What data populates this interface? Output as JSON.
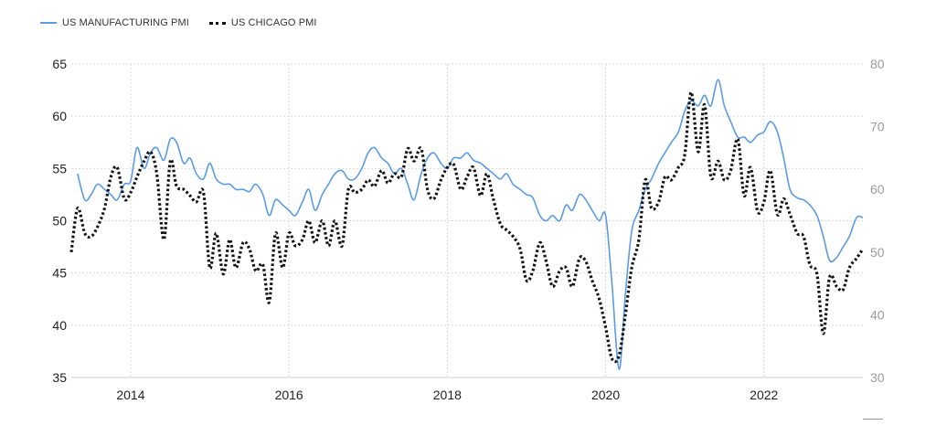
{
  "legend": [
    {
      "label": "US MANUFACTURING PMI",
      "style": "solid",
      "color": "#5b9be6"
    },
    {
      "label": "US CHICAGO PMI",
      "style": "dotted",
      "color": "#111111"
    }
  ],
  "chart_data": {
    "type": "line",
    "title": "",
    "xlabel": "",
    "ylabel": "",
    "grid": true,
    "legend_position": "top-left",
    "x_ticks": [
      "2014",
      "2016",
      "2018",
      "2020",
      "2022"
    ],
    "xlim": [
      2013.25,
      2023.25
    ],
    "y_left": {
      "lim": [
        35,
        65
      ],
      "ticks": [
        "35",
        "40",
        "45",
        "50",
        "55",
        "60",
        "65"
      ]
    },
    "y_right": {
      "lim": [
        30,
        80
      ],
      "ticks": [
        "30",
        "40",
        "50",
        "60",
        "70",
        "80"
      ]
    },
    "series": [
      {
        "name": "US MANUFACTURING PMI",
        "axis": "left",
        "color": "#5b9be6",
        "dash": "solid",
        "x": [
          2013.33,
          2013.42,
          2013.5,
          2013.58,
          2013.67,
          2013.75,
          2013.83,
          2013.92,
          2014.0,
          2014.08,
          2014.17,
          2014.25,
          2014.33,
          2014.42,
          2014.5,
          2014.58,
          2014.67,
          2014.75,
          2014.83,
          2014.92,
          2015.0,
          2015.08,
          2015.17,
          2015.25,
          2015.33,
          2015.42,
          2015.5,
          2015.58,
          2015.67,
          2015.75,
          2015.83,
          2015.92,
          2016.0,
          2016.08,
          2016.17,
          2016.25,
          2016.33,
          2016.42,
          2016.5,
          2016.58,
          2016.67,
          2016.75,
          2016.83,
          2016.92,
          2017.0,
          2017.08,
          2017.17,
          2017.25,
          2017.33,
          2017.42,
          2017.5,
          2017.58,
          2017.67,
          2017.75,
          2017.83,
          2017.92,
          2018.0,
          2018.08,
          2018.17,
          2018.25,
          2018.33,
          2018.42,
          2018.5,
          2018.58,
          2018.67,
          2018.75,
          2018.83,
          2018.92,
          2019.0,
          2019.08,
          2019.17,
          2019.25,
          2019.33,
          2019.42,
          2019.5,
          2019.58,
          2019.67,
          2019.75,
          2019.83,
          2019.92,
          2020.0,
          2020.08,
          2020.17,
          2020.25,
          2020.33,
          2020.42,
          2020.5,
          2020.58,
          2020.67,
          2020.75,
          2020.83,
          2020.92,
          2021.0,
          2021.08,
          2021.17,
          2021.25,
          2021.33,
          2021.42,
          2021.5,
          2021.58,
          2021.67,
          2021.75,
          2021.83,
          2021.92,
          2022.0,
          2022.08,
          2022.17,
          2022.25,
          2022.33,
          2022.42,
          2022.5,
          2022.58,
          2022.67,
          2022.75,
          2022.83,
          2022.92,
          2023.0,
          2023.08,
          2023.17,
          2023.25
        ],
        "y": [
          54.5,
          52.0,
          52.5,
          53.5,
          53.0,
          52.5,
          52.0,
          53.5,
          53.8,
          57.0,
          55.0,
          56.5,
          57.0,
          55.8,
          57.8,
          57.5,
          55.5,
          56.0,
          54.5,
          54.0,
          55.5,
          54.0,
          53.5,
          53.5,
          53.0,
          53.0,
          52.8,
          53.5,
          52.5,
          50.5,
          52.0,
          51.5,
          51.0,
          50.5,
          51.8,
          53.0,
          51.0,
          52.5,
          53.5,
          54.5,
          54.8,
          54.0,
          54.0,
          55.0,
          56.5,
          57.0,
          56.0,
          55.5,
          54.5,
          55.0,
          53.5,
          52.0,
          54.5,
          56.0,
          56.5,
          55.5,
          55.0,
          56.0,
          56.0,
          56.5,
          55.8,
          55.5,
          55.0,
          54.5,
          54.0,
          54.5,
          53.5,
          53.0,
          52.5,
          52.2,
          50.5,
          50.0,
          50.5,
          50.0,
          51.5,
          51.0,
          52.5,
          52.0,
          51.0,
          50.0,
          50.5,
          44.0,
          35.8,
          43.0,
          49.0,
          51.0,
          53.0,
          54.0,
          55.5,
          56.5,
          57.5,
          58.5,
          60.5,
          61.5,
          61.0,
          62.0,
          61.0,
          63.5,
          61.0,
          59.5,
          58.0,
          58.0,
          57.5,
          58.2,
          58.5,
          59.5,
          58.5,
          56.0,
          53.0,
          52.2,
          52.0,
          51.5,
          50.5,
          48.5,
          46.2,
          46.5,
          47.5,
          48.5,
          50.3,
          50.3
        ]
      },
      {
        "name": "US CHICAGO PMI",
        "axis": "right",
        "color": "#111111",
        "dash": "dotted",
        "x": [
          2013.25,
          2013.33,
          2013.42,
          2013.5,
          2013.58,
          2013.67,
          2013.75,
          2013.83,
          2013.92,
          2014.0,
          2014.08,
          2014.17,
          2014.25,
          2014.33,
          2014.42,
          2014.5,
          2014.58,
          2014.67,
          2014.75,
          2014.83,
          2014.92,
          2015.0,
          2015.08,
          2015.17,
          2015.25,
          2015.33,
          2015.42,
          2015.5,
          2015.58,
          2015.67,
          2015.75,
          2015.83,
          2015.92,
          2016.0,
          2016.08,
          2016.17,
          2016.25,
          2016.33,
          2016.42,
          2016.5,
          2016.58,
          2016.67,
          2016.75,
          2016.83,
          2016.92,
          2017.0,
          2017.08,
          2017.17,
          2017.25,
          2017.33,
          2017.42,
          2017.5,
          2017.58,
          2017.67,
          2017.75,
          2017.83,
          2017.92,
          2018.0,
          2018.08,
          2018.17,
          2018.25,
          2018.33,
          2018.42,
          2018.5,
          2018.58,
          2018.67,
          2018.75,
          2018.83,
          2018.92,
          2019.0,
          2019.08,
          2019.17,
          2019.25,
          2019.33,
          2019.42,
          2019.5,
          2019.58,
          2019.67,
          2019.75,
          2019.83,
          2019.92,
          2020.0,
          2020.08,
          2020.17,
          2020.25,
          2020.33,
          2020.42,
          2020.5,
          2020.58,
          2020.67,
          2020.75,
          2020.83,
          2020.92,
          2021.0,
          2021.08,
          2021.17,
          2021.25,
          2021.33,
          2021.42,
          2021.5,
          2021.58,
          2021.67,
          2021.75,
          2021.83,
          2021.92,
          2022.0,
          2022.08,
          2022.17,
          2022.25,
          2022.33,
          2022.42,
          2022.5,
          2022.58,
          2022.67,
          2022.75,
          2022.83,
          2022.92,
          2023.0,
          2023.08,
          2023.17,
          2023.25
        ],
        "y": [
          50.0,
          57.0,
          53.0,
          52.5,
          54.0,
          57.0,
          62.0,
          63.5,
          58.5,
          59.5,
          62.0,
          64.5,
          66.0,
          62.5,
          52.0,
          64.5,
          60.5,
          60.0,
          59.0,
          58.0,
          59.5,
          47.5,
          53.0,
          46.5,
          52.0,
          47.5,
          51.5,
          50.5,
          47.0,
          48.0,
          42.0,
          53.0,
          47.5,
          53.0,
          51.0,
          52.0,
          55.0,
          51.5,
          55.0,
          51.0,
          55.0,
          51.0,
          60.0,
          59.5,
          60.0,
          61.5,
          60.5,
          63.0,
          61.0,
          62.5,
          62.0,
          66.5,
          64.5,
          66.5,
          60.0,
          58.5,
          61.5,
          63.5,
          64.0,
          60.0,
          62.0,
          63.5,
          59.0,
          62.5,
          58.5,
          54.5,
          53.5,
          52.5,
          50.5,
          45.5,
          47.0,
          51.5,
          48.5,
          44.5,
          47.0,
          47.5,
          44.5,
          49.0,
          48.5,
          45.5,
          42.5,
          38.0,
          33.0,
          33.5,
          40.0,
          47.5,
          52.0,
          61.5,
          57.0,
          58.0,
          62.0,
          61.5,
          63.5,
          65.5,
          75.5,
          66.0,
          73.5,
          62.0,
          64.5,
          61.5,
          63.0,
          68.0,
          59.0,
          63.5,
          56.5,
          58.0,
          63.0,
          56.0,
          58.5,
          56.0,
          53.0,
          52.5,
          48.0,
          46.5,
          37.0,
          46.0,
          44.5,
          44.0,
          47.5,
          49.0,
          50.5
        ]
      }
    ]
  }
}
